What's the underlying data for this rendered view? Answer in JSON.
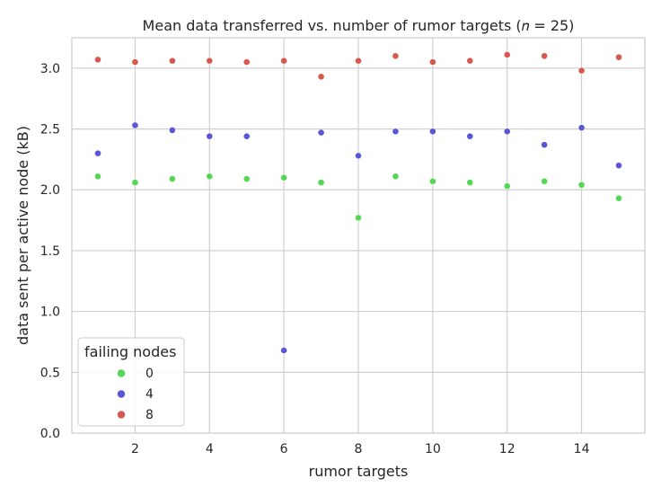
{
  "chart_data": {
    "type": "scatter",
    "title": "Mean data transferred vs. number of rumor targets (𝑛 = 25)",
    "xlabel": "rumor targets",
    "ylabel": "data sent per active node (kB)",
    "xlim": [
      0.3,
      15.7
    ],
    "ylim": [
      0.0,
      3.25
    ],
    "xticks": [
      2,
      4,
      6,
      8,
      10,
      12,
      14
    ],
    "xtick_labels": [
      "2",
      "4",
      "6",
      "8",
      "10",
      "12",
      "14"
    ],
    "yticks": [
      0.0,
      0.5,
      1.0,
      1.5,
      2.0,
      2.5,
      3.0
    ],
    "ytick_labels": [
      "0.0",
      "0.5",
      "1.0",
      "1.5",
      "2.0",
      "2.5",
      "3.0"
    ],
    "grid": true,
    "legend": {
      "title": "failing nodes",
      "placement": "lower-left"
    },
    "x": [
      1,
      2,
      3,
      4,
      5,
      6,
      7,
      8,
      9,
      10,
      11,
      12,
      13,
      14,
      15
    ],
    "series": [
      {
        "name": "0",
        "color": "#54d854",
        "values": [
          2.11,
          2.06,
          2.09,
          2.11,
          2.09,
          2.1,
          2.06,
          1.77,
          2.11,
          2.07,
          2.06,
          2.03,
          2.07,
          2.04,
          1.93
        ]
      },
      {
        "name": "4",
        "color": "#5b55d8",
        "values": [
          2.3,
          2.53,
          2.49,
          2.44,
          2.44,
          0.68,
          2.47,
          2.28,
          2.48,
          2.48,
          2.44,
          2.48,
          2.37,
          2.51,
          2.2
        ]
      },
      {
        "name": "8",
        "color": "#d8574f",
        "values": [
          3.07,
          3.05,
          3.06,
          3.06,
          3.05,
          3.06,
          2.93,
          3.06,
          3.1,
          3.05,
          3.06,
          3.11,
          3.1,
          2.98,
          3.09
        ]
      }
    ]
  }
}
